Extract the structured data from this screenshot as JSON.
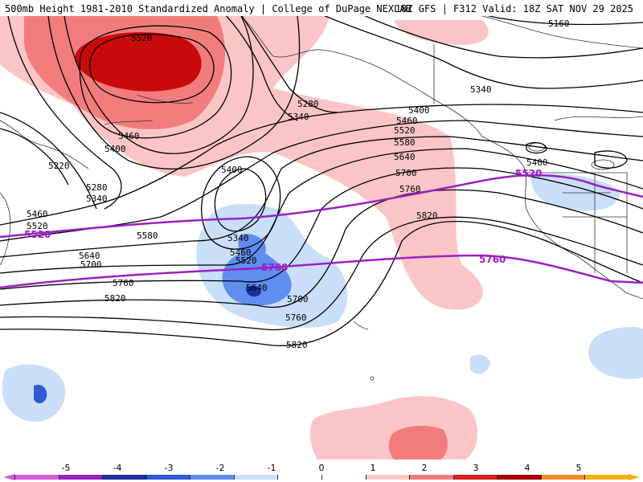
{
  "header": {
    "title_left": "500mb Height 1981-2010 Standardized Anomaly | College of DuPage NEXLAB",
    "title_right": "18Z GFS | F312 Valid: 18Z SAT NOV 29 2025"
  },
  "contour_labels": [
    "5520",
    "5460",
    "5400",
    "5220",
    "5280",
    "5340",
    "5460",
    "5520",
    "5160",
    "5340",
    "5280",
    "5340",
    "5400",
    "5460",
    "5520",
    "5580",
    "5640",
    "5700",
    "5760",
    "5820",
    "5400",
    "5400",
    "5340",
    "5460",
    "5520",
    "5580",
    "5640",
    "5700",
    "5760",
    "5820",
    "5640",
    "5700",
    "5760",
    "5820"
  ],
  "highlight_labels": [
    "5520",
    "5760",
    "5520",
    "5760"
  ],
  "colorbar": {
    "ticks": [
      "-5",
      "-4",
      "-3",
      "-2",
      "-1",
      "0",
      "1",
      "2",
      "3",
      "4",
      "5"
    ],
    "colors": [
      "#d65ad6",
      "#9b1fc4",
      "#1b2fa0",
      "#2f5ad7",
      "#5f8df0",
      "#c9def9",
      "#ffffff",
      "#ffffff",
      "#fcc5c5",
      "#f27c7c",
      "#d91f1f",
      "#a80000",
      "#f28c28",
      "#f5b01d"
    ]
  }
}
